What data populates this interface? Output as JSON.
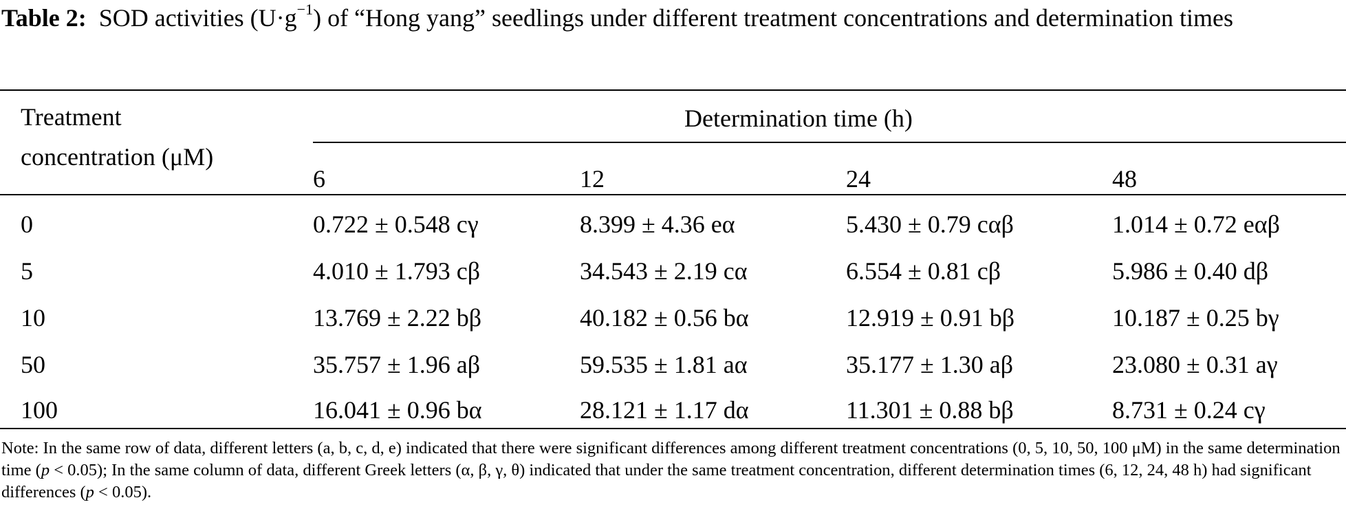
{
  "caption": {
    "label": "Table 2:",
    "text_before_sup": "SOD activities (U·g",
    "sup": "−1",
    "text_after_sup": ") of “Hong yang” seedlings under different treatment concentrations and determination times"
  },
  "table": {
    "row_header_line1": "Treatment",
    "row_header_line2": "concentration (μM)",
    "group_header": "Determination time (h)",
    "columns": [
      "6",
      "12",
      "24",
      "48"
    ],
    "rows": [
      {
        "concentration": "0",
        "values": [
          "0.722 ± 0.548 cγ",
          "8.399 ± 4.36 eα",
          "5.430 ± 0.79 cαβ",
          "1.014 ± 0.72 eαβ"
        ]
      },
      {
        "concentration": "5",
        "values": [
          "4.010 ± 1.793 cβ",
          "34.543 ± 2.19 cα",
          "6.554 ± 0.81 cβ",
          "5.986 ± 0.40 dβ"
        ]
      },
      {
        "concentration": "10",
        "values": [
          "13.769 ± 2.22 bβ",
          "40.182 ± 0.56 bα",
          "12.919 ± 0.91 bβ",
          "10.187 ± 0.25 bγ"
        ]
      },
      {
        "concentration": "50",
        "values": [
          "35.757 ± 1.96 aβ",
          "59.535 ± 1.81 aα",
          "35.177 ± 1.30 aβ",
          "23.080 ± 0.31 aγ"
        ]
      },
      {
        "concentration": "100",
        "values": [
          "16.041 ± 0.96 bα",
          "28.121 ± 1.17 dα",
          "11.301 ± 0.88 bβ",
          "8.731 ± 0.24 cγ"
        ]
      }
    ]
  },
  "note": {
    "part1": "Note: In the same row of data, different letters (a, b, c, d, e) indicated that there were significant differences among different treatment concentrations (0, 5, 10, 50, 100 μM) in the same determination time (",
    "p1": "p",
    "part2": " < 0.05); In the same column of data, different Greek letters (α, β, γ, θ) indicated that under the same treatment concentration, different determination times (6, 12, 24, 48 h) had significant differences (",
    "p2": "p",
    "part3": " < 0.05)."
  }
}
